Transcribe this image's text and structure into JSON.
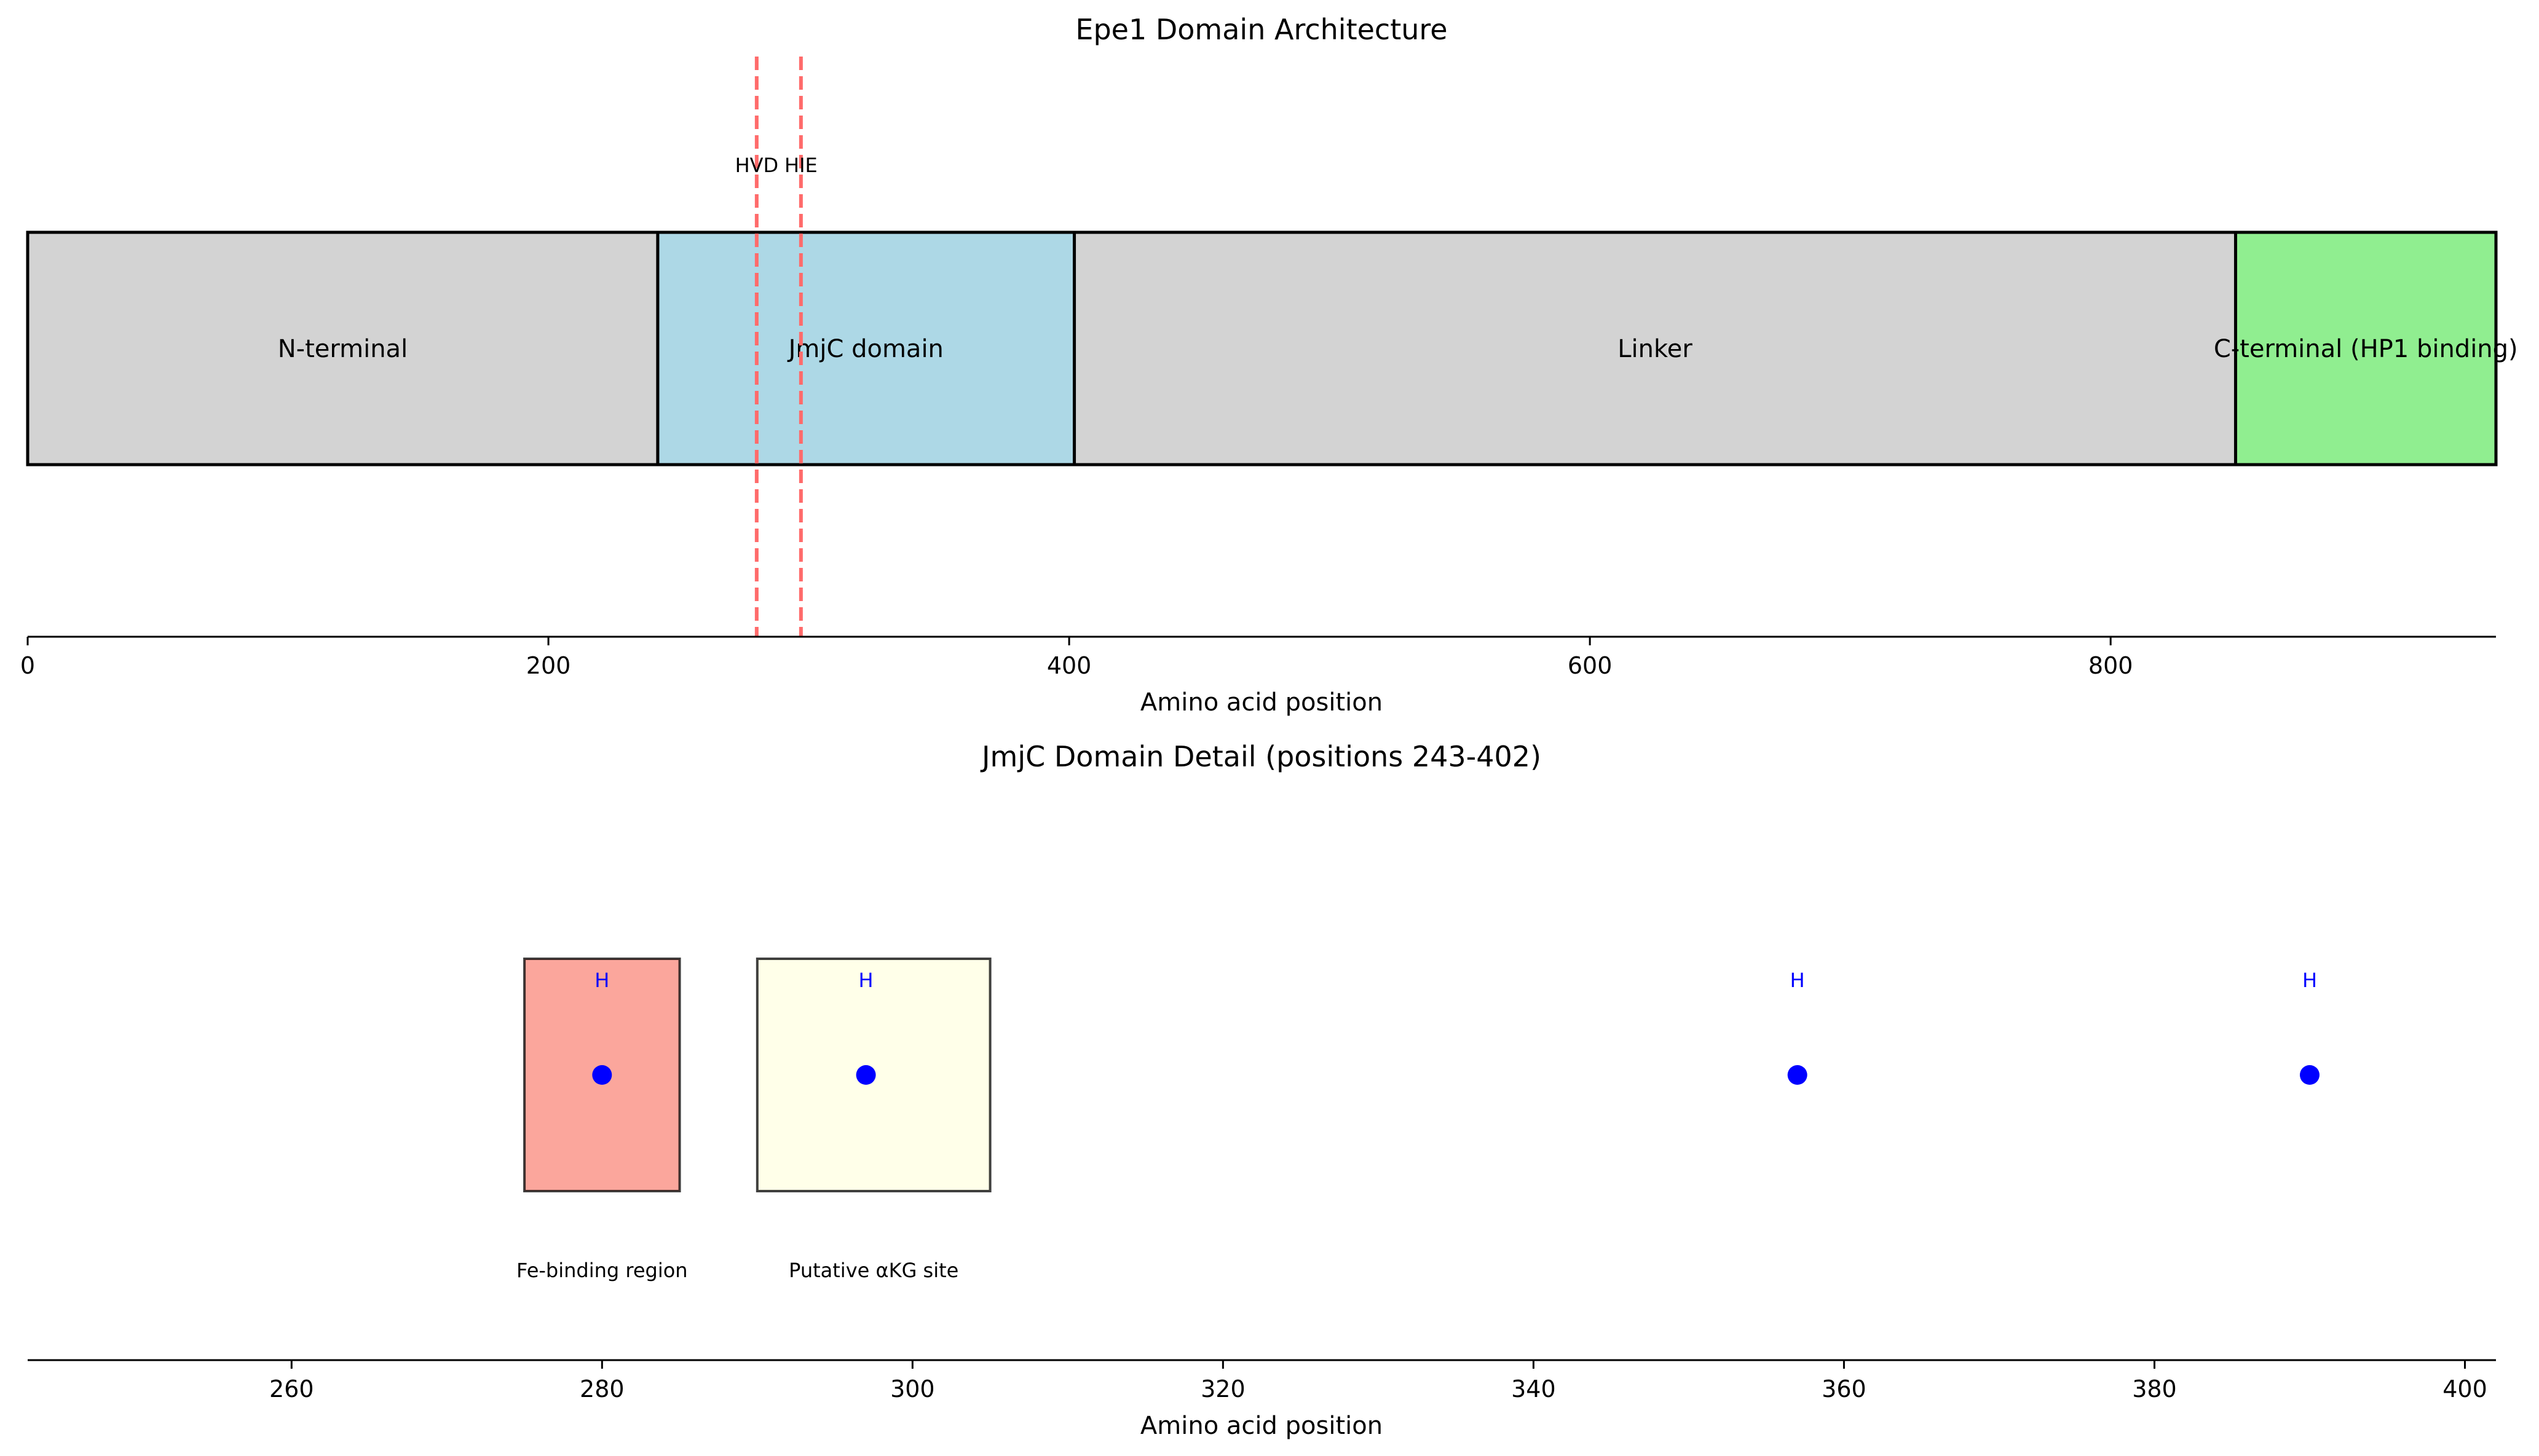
{
  "chart_data": [
    {
      "type": "domain-architecture",
      "title": "Epe1 Domain Architecture",
      "xlabel": "Amino acid position",
      "ylabel": "",
      "xlim": [
        0,
        948
      ],
      "xticks": [
        0,
        200,
        400,
        600,
        800
      ],
      "grid": false,
      "domains": [
        {
          "name": "N-terminal",
          "start": 1,
          "end": 242,
          "color": "#d3d3d3"
        },
        {
          "name": "JmjC domain",
          "start": 243,
          "end": 402,
          "color": "#add8e6"
        },
        {
          "name": "Linker",
          "start": 403,
          "end": 848,
          "color": "#d3d3d3"
        },
        {
          "name": "C-terminal (HP1 binding)",
          "start": 849,
          "end": 948,
          "color": "#90ee90"
        }
      ],
      "motifs": [
        {
          "label": "HVD",
          "position": 280
        },
        {
          "label": "HIE",
          "position": 297
        }
      ],
      "motif_line_color": "#ff6b6b"
    },
    {
      "type": "scatter",
      "title": "JmjC Domain Detail (positions 243-402)",
      "xlabel": "Amino acid position",
      "ylabel": "",
      "xlim": [
        243,
        402
      ],
      "xticks": [
        260,
        280,
        300,
        320,
        340,
        360,
        380,
        400
      ],
      "grid": false,
      "regions": [
        {
          "label": "Fe-binding region",
          "start": 275,
          "end": 285,
          "color": "#fa8072"
        },
        {
          "label": "Putative αKG site",
          "start": 290,
          "end": 305,
          "color": "#ffffe0"
        }
      ],
      "points": [
        {
          "x": 280,
          "label": "H"
        },
        {
          "x": 297,
          "label": "H"
        },
        {
          "x": 357,
          "label": "H"
        },
        {
          "x": 390,
          "label": "H"
        }
      ],
      "point_color": "#0000ff"
    }
  ]
}
